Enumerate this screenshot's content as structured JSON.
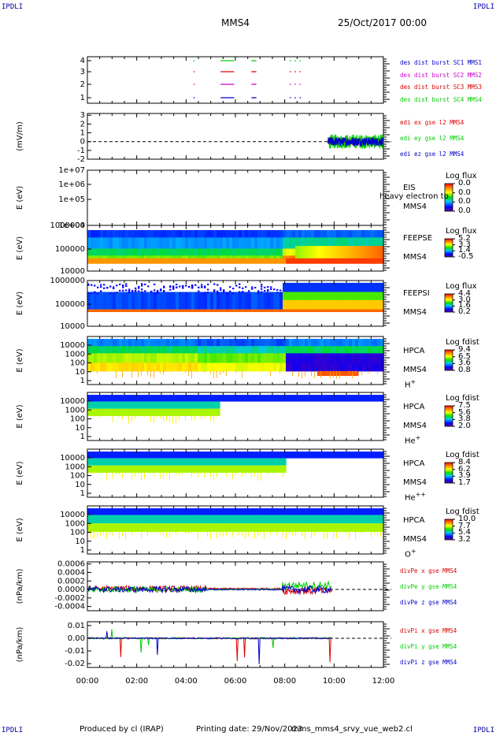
{
  "corners": {
    "tl": "IPDLI",
    "tr": "IPDLI",
    "bl": "IPDLI",
    "br": "IPDLI"
  },
  "header": {
    "title": "MMS4",
    "date": "25/Oct/2017 00:00"
  },
  "footer": {
    "produced": "Produced by cl (IRAP)",
    "printing": "Printing date: 29/Nov/2023",
    "file": "mms_mms4_srvy_vue_web2.cl"
  },
  "colors": {
    "red": "#dd0000",
    "green": "#00cc00",
    "blue": "#0000cc",
    "magenta": "#cc00cc"
  },
  "chart_data": [
    {
      "type": "line",
      "id": "burst",
      "ylabel": "",
      "yticks": [
        "4",
        "3",
        "2",
        "1"
      ],
      "legend": [
        {
          "text": "des dist burst SC1 MMS1",
          "color": "#0000cc"
        },
        {
          "text": "des dist burst SC2 MMS2",
          "color": "#cc00cc"
        },
        {
          "text": "des dist burst SC3 MMS3",
          "color": "#dd0000"
        },
        {
          "text": "des dist burst SC4 MMS4",
          "color": "#00cc00"
        }
      ],
      "series": [
        {
          "name": "des dist burst SC4 MMS4",
          "y": 4,
          "color": "#00cc00",
          "segments": [
            [
              4.3,
              4.35
            ],
            [
              5.4,
              5.95
            ],
            [
              6.65,
              6.85
            ],
            [
              8.2,
              8.25
            ],
            [
              8.4,
              8.45
            ],
            [
              8.6,
              8.65
            ]
          ]
        },
        {
          "name": "des dist burst SC3 MMS3",
          "y": 3,
          "color": "#dd0000",
          "segments": [
            [
              4.3,
              4.35
            ],
            [
              5.4,
              5.95
            ],
            [
              6.65,
              6.85
            ],
            [
              8.2,
              8.25
            ],
            [
              8.4,
              8.45
            ],
            [
              8.6,
              8.65
            ]
          ]
        },
        {
          "name": "des dist burst SC2 MMS2",
          "y": 2,
          "color": "#cc00cc",
          "segments": [
            [
              4.3,
              4.35
            ],
            [
              5.4,
              5.95
            ],
            [
              6.65,
              6.85
            ],
            [
              8.2,
              8.25
            ],
            [
              8.4,
              8.45
            ],
            [
              8.6,
              8.65
            ]
          ]
        },
        {
          "name": "des dist burst SC1 MMS1",
          "y": 1,
          "color": "#0000cc",
          "segments": [
            [
              4.3,
              4.35
            ],
            [
              5.4,
              5.95
            ],
            [
              6.65,
              6.85
            ],
            [
              8.2,
              8.25
            ],
            [
              8.4,
              8.45
            ],
            [
              8.6,
              8.65
            ]
          ]
        }
      ]
    },
    {
      "type": "line",
      "id": "edi",
      "ylabel": "(mV/m)",
      "yticks": [
        "3",
        "2",
        "1",
        "0",
        "-1",
        "-2"
      ],
      "ylim": [
        -2,
        3.2
      ],
      "legend": [
        {
          "text": "edi ex gse l2 MMS4",
          "color": "#dd0000"
        },
        {
          "text": "edi ey gse l2 MMS4",
          "color": "#00cc00"
        },
        {
          "text": "edi ez gse l2 MMS4",
          "color": "#0000cc"
        }
      ],
      "x_start_hours": 9.75,
      "x_end_hours": 12.0
    },
    {
      "type": "heatmap",
      "id": "eis",
      "ylabel": "E (eV)",
      "yticks": [
        "1e+07",
        "1e+06",
        "1e+05",
        "1e+04"
      ],
      "species": "EIS",
      "overlay": "heavy electron to",
      "sc": "MMS4",
      "cb_title": "Log flux",
      "cb_values": [
        "0.0",
        "0.0",
        "0.0",
        "0.0"
      ]
    },
    {
      "type": "heatmap",
      "id": "feepse",
      "ylabel": "E (eV)",
      "yticks": [
        "1000000",
        "100000",
        "10000"
      ],
      "species": "FEEPSE",
      "sc": "MMS4",
      "cb_title": "Log flux",
      "cb_values": [
        "5.2",
        "3.3",
        "1.4",
        "-0.5"
      ]
    },
    {
      "type": "heatmap",
      "id": "feepsi",
      "ylabel": "E (eV)",
      "yticks": [
        "1000000",
        "100000",
        "10000"
      ],
      "species": "FEEPSI",
      "sc": "MMS4",
      "cb_title": "Log flux",
      "cb_values": [
        "4.4",
        "3.0",
        "1.6",
        "0.2"
      ]
    },
    {
      "type": "heatmap",
      "id": "hpca_h",
      "ylabel": "E (eV)",
      "yticks": [
        "10000",
        "1000",
        "100",
        "10",
        "1"
      ],
      "species": "HPCA",
      "sc": "MMS4",
      "ion": "H",
      "ion_sup": "+",
      "cb_title": "Log fdist",
      "cb_values": [
        "9.4",
        "6.5",
        "3.6",
        "0.8"
      ]
    },
    {
      "type": "heatmap",
      "id": "hpca_he",
      "ylabel": "E (eV)",
      "yticks": [
        "10000",
        "1000",
        "100",
        "10",
        "1"
      ],
      "species": "HPCA",
      "sc": "MMS4",
      "ion": "He",
      "ion_sup": "+",
      "cb_title": "Log fdist",
      "cb_values": [
        "7.5",
        "5.6",
        "3.8",
        "2.0"
      ]
    },
    {
      "type": "heatmap",
      "id": "hpca_hepp",
      "ylabel": "E (eV)",
      "yticks": [
        "10000",
        "1000",
        "100",
        "10",
        "1"
      ],
      "species": "HPCA",
      "sc": "MMS4",
      "ion": "He",
      "ion_sup": "++",
      "cb_title": "Log fdist",
      "cb_values": [
        "8.4",
        "6.2",
        "3.9",
        "1.7"
      ]
    },
    {
      "type": "heatmap",
      "id": "hpca_o",
      "ylabel": "E (eV)",
      "yticks": [
        "10000",
        "1000",
        "100",
        "10",
        "1"
      ],
      "species": "HPCA",
      "sc": "MMS4",
      "ion": "O",
      "ion_sup": "+",
      "cb_title": "Log fdist",
      "cb_values": [
        "10.0",
        "7.7",
        "5.4",
        "3.2"
      ]
    },
    {
      "type": "line",
      "id": "divpe",
      "ylabel": "(nPa/km)",
      "yticks": [
        "0.0006",
        "0.0004",
        "0.0002",
        "0.0000",
        "-0.0002",
        "-0.0004"
      ],
      "ylim": [
        -0.0005,
        0.00065
      ],
      "legend": [
        {
          "text": "divPe x gse MMS4",
          "color": "#dd0000"
        },
        {
          "text": "divPe y gse MMS4",
          "color": "#00cc00"
        },
        {
          "text": "divPe z gse MMS4",
          "color": "#0000cc"
        }
      ],
      "x_start_hours": 0,
      "x_end_hours": 9.9
    },
    {
      "type": "line",
      "id": "divpi",
      "ylabel": "(nPa/km)",
      "yticks": [
        "0.01",
        "0.00",
        "-0.01",
        "-0.02"
      ],
      "ylim": [
        -0.023,
        0.013
      ],
      "legend": [
        {
          "text": "divPi x gse MMS4",
          "color": "#dd0000"
        },
        {
          "text": "divPi y gse MMS4",
          "color": "#00cc00"
        },
        {
          "text": "divPi z gse MMS4",
          "color": "#0000cc"
        }
      ],
      "x_start_hours": 0,
      "x_end_hours": 9.9
    }
  ],
  "xaxis": {
    "ticks": [
      "00:00",
      "02:00",
      "04:00",
      "06:00",
      "08:00",
      "10:00",
      "12:00"
    ],
    "range_hours": [
      0,
      12
    ]
  }
}
